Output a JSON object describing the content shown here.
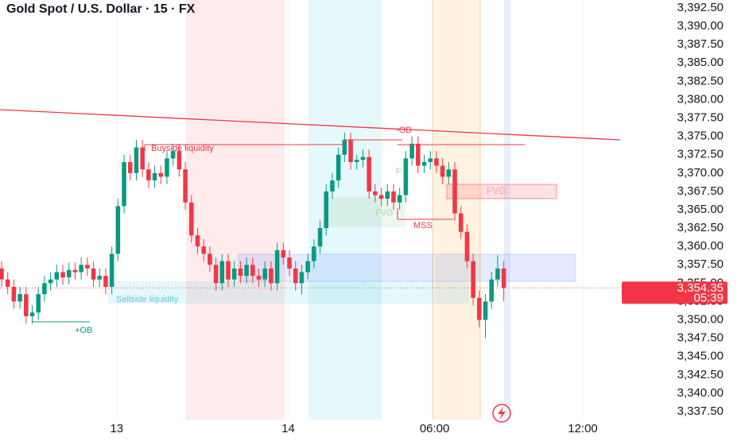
{
  "chart_data": {
    "type": "candlestick",
    "title": "Gold Spot / U.S. Dollar · 15 · FX",
    "up_color": "#089981",
    "down_color": "#f23645",
    "x": [
      0,
      1,
      2,
      3,
      4,
      5,
      6,
      7,
      8,
      9,
      10,
      11,
      12,
      13,
      14,
      15,
      16,
      17,
      18,
      19,
      20,
      21,
      22,
      23,
      24,
      25,
      26,
      27,
      28,
      29,
      30,
      31,
      32,
      33,
      34,
      35,
      36,
      37,
      38,
      39,
      40,
      41,
      42,
      43,
      44,
      45,
      46,
      47,
      48,
      49,
      50,
      51,
      52,
      53,
      54,
      55,
      56,
      57,
      58,
      59,
      60,
      61,
      62,
      63,
      64,
      65,
      66,
      67,
      68,
      69,
      70,
      71,
      72,
      73,
      74,
      75,
      76,
      77,
      78,
      79,
      80,
      81,
      82
    ],
    "open": [
      3357,
      3355.5,
      3354.5,
      3352.5,
      3353.5,
      3350.5,
      3351,
      3353.5,
      3355,
      3355.5,
      3356.5,
      3355.8,
      3356.8,
      3356.5,
      3357.5,
      3357,
      3355.5,
      3356,
      3354.5,
      3359,
      3365.5,
      3371.5,
      3370,
      3373.5,
      3370.5,
      3369,
      3370,
      3369.5,
      3372,
      3373,
      3370.5,
      3366,
      3361.5,
      3360,
      3359,
      3357.5,
      3355,
      3358,
      3355.5,
      3357,
      3356,
      3357.5,
      3356,
      3355.5,
      3357,
      3355,
      3359.5,
      3358.5,
      3357,
      3355,
      3356.5,
      3358,
      3360,
      3362.5,
      3367.5,
      3369,
      3372.5,
      3374.5,
      3371.5,
      3371.8,
      3372.2,
      3367.5,
      3367,
      3366.5,
      3367.5,
      3366,
      3367,
      3372,
      3374,
      3371,
      3371.5,
      3372,
      3371,
      3369.5,
      3370.5,
      3364.5,
      3362,
      3358,
      3353,
      3350,
      3352.5,
      3355.5,
      3357
    ],
    "high": [
      3358,
      3356.5,
      3355.5,
      3354.5,
      3354.5,
      3352,
      3354.5,
      3356,
      3356.5,
      3357.5,
      3357.5,
      3357.8,
      3357.8,
      3358.5,
      3358.5,
      3358,
      3357,
      3357,
      3360,
      3366.5,
      3372.5,
      3372.5,
      3374.5,
      3374.5,
      3371.5,
      3371,
      3371,
      3373,
      3374,
      3374,
      3371.5,
      3367,
      3362.5,
      3361,
      3360,
      3358.5,
      3359,
      3359,
      3358,
      3358,
      3358.5,
      3358.5,
      3357,
      3358,
      3358,
      3360.5,
      3360.5,
      3359.5,
      3358,
      3357.5,
      3359,
      3361,
      3363.5,
      3368.5,
      3370,
      3373.5,
      3375.5,
      3375.5,
      3372.5,
      3373.2,
      3373.2,
      3368.5,
      3368,
      3368.5,
      3368.5,
      3368,
      3373,
      3375,
      3375,
      3372.5,
      3373,
      3373,
      3372,
      3371.5,
      3371.5,
      3365.5,
      3363,
      3359,
      3354,
      3353.5,
      3356.5,
      3358.8,
      3358
    ],
    "low": [
      3354.5,
      3353.5,
      3351.5,
      3351.5,
      3349.5,
      3349.5,
      3350,
      3352.5,
      3354,
      3354.5,
      3354.8,
      3354.8,
      3355.5,
      3355.5,
      3356,
      3354.5,
      3354.5,
      3353.5,
      3353.5,
      3358,
      3364.5,
      3369,
      3369,
      3369.5,
      3368,
      3368,
      3368.5,
      3368.5,
      3371,
      3369.5,
      3365,
      3360.5,
      3359,
      3358,
      3356.5,
      3354,
      3354,
      3354.5,
      3354.5,
      3355,
      3355,
      3355,
      3354.5,
      3354.5,
      3354,
      3354,
      3357.5,
      3356,
      3354,
      3353.5,
      3355.5,
      3357,
      3359,
      3361.5,
      3366.5,
      3368,
      3371.5,
      3370.5,
      3370.5,
      3370.8,
      3366.5,
      3366,
      3365.5,
      3365.5,
      3365,
      3365,
      3366,
      3371,
      3370,
      3370,
      3370.5,
      3370,
      3368.5,
      3368.5,
      3363.5,
      3361,
      3357,
      3352,
      3349,
      3347.5,
      3351.5,
      3354.5,
      3352.5
    ],
    "close": [
      3355.5,
      3354.5,
      3352.5,
      3353.5,
      3350.5,
      3351,
      3353.5,
      3355,
      3355.5,
      3356.5,
      3355.8,
      3356.8,
      3356.5,
      3357.5,
      3357,
      3355.5,
      3356,
      3354.5,
      3359,
      3365.5,
      3371.5,
      3370,
      3373.5,
      3370.5,
      3369,
      3370,
      3369.5,
      3372,
      3373,
      3370.5,
      3366,
      3361.5,
      3360,
      3359,
      3357.5,
      3355,
      3358,
      3355.5,
      3357,
      3356,
      3357.5,
      3356,
      3355.5,
      3357,
      3355,
      3359.5,
      3358.5,
      3357,
      3355,
      3356.5,
      3358,
      3360,
      3362.5,
      3367.5,
      3369,
      3372.5,
      3374.5,
      3371.5,
      3371.8,
      3372.2,
      3367.5,
      3367,
      3366.5,
      3367.5,
      3366,
      3367,
      3372,
      3374,
      3371,
      3371.5,
      3372,
      3371,
      3369.5,
      3370.5,
      3364.5,
      3362,
      3358,
      3353,
      3350,
      3352.5,
      3355.5,
      3357,
      3354.35
    ],
    "xlim": [
      -0.26,
      101
    ],
    "xticks": [
      {
        "value": 18.8,
        "label": "13"
      },
      {
        "value": 46.8,
        "label": "14"
      },
      {
        "value": 70.7,
        "label": "06:00"
      },
      {
        "value": 94.9,
        "label": "12:00"
      }
    ],
    "ylim": [
      3336.42,
      3393.58
    ],
    "yticks": [
      {
        "value": 3337.5,
        "label": "3,337.50"
      },
      {
        "value": 3340,
        "label": "3,340.00"
      },
      {
        "value": 3342.5,
        "label": "3,342.50"
      },
      {
        "value": 3345,
        "label": "3,345.00"
      },
      {
        "value": 3347.5,
        "label": "3,347.50"
      },
      {
        "value": 3350,
        "label": "3,350.00"
      },
      {
        "value": 3352.5,
        "label": "3,352.50"
      },
      {
        "value": 3355,
        "label": "3,355.00"
      },
      {
        "value": 3357.5,
        "label": "3,357.50"
      },
      {
        "value": 3360,
        "label": "3,360.00"
      },
      {
        "value": 3362.5,
        "label": "3,362.50"
      },
      {
        "value": 3365,
        "label": "3,365.00"
      },
      {
        "value": 3367.5,
        "label": "3,367.50"
      },
      {
        "value": 3370,
        "label": "3,370.00"
      },
      {
        "value": 3372.5,
        "label": "3,372.50"
      },
      {
        "value": 3375,
        "label": "3,375.00"
      },
      {
        "value": 3377.5,
        "label": "3,377.50"
      },
      {
        "value": 3380,
        "label": "3,380.00"
      },
      {
        "value": 3382.5,
        "label": "3,382.50"
      },
      {
        "value": 3385,
        "label": "3,385.00"
      },
      {
        "value": 3387.5,
        "label": "3,387.50"
      },
      {
        "value": 3390,
        "label": "3,390.00"
      },
      {
        "value": 3392.5,
        "label": "3,392.50"
      }
    ],
    "last_price": {
      "value": 3354.35,
      "label": "3,354.35",
      "countdown": "05:39"
    },
    "annotations": {
      "buyside": "Buyside liquidity",
      "sellside": "Sellside liquidity",
      "plus_ob": "+OB",
      "minus_ob": "-OB",
      "fvg": "FVG",
      "mss": "MSS",
      "fvg_faint": "FVG",
      "f_faint": "F"
    }
  }
}
